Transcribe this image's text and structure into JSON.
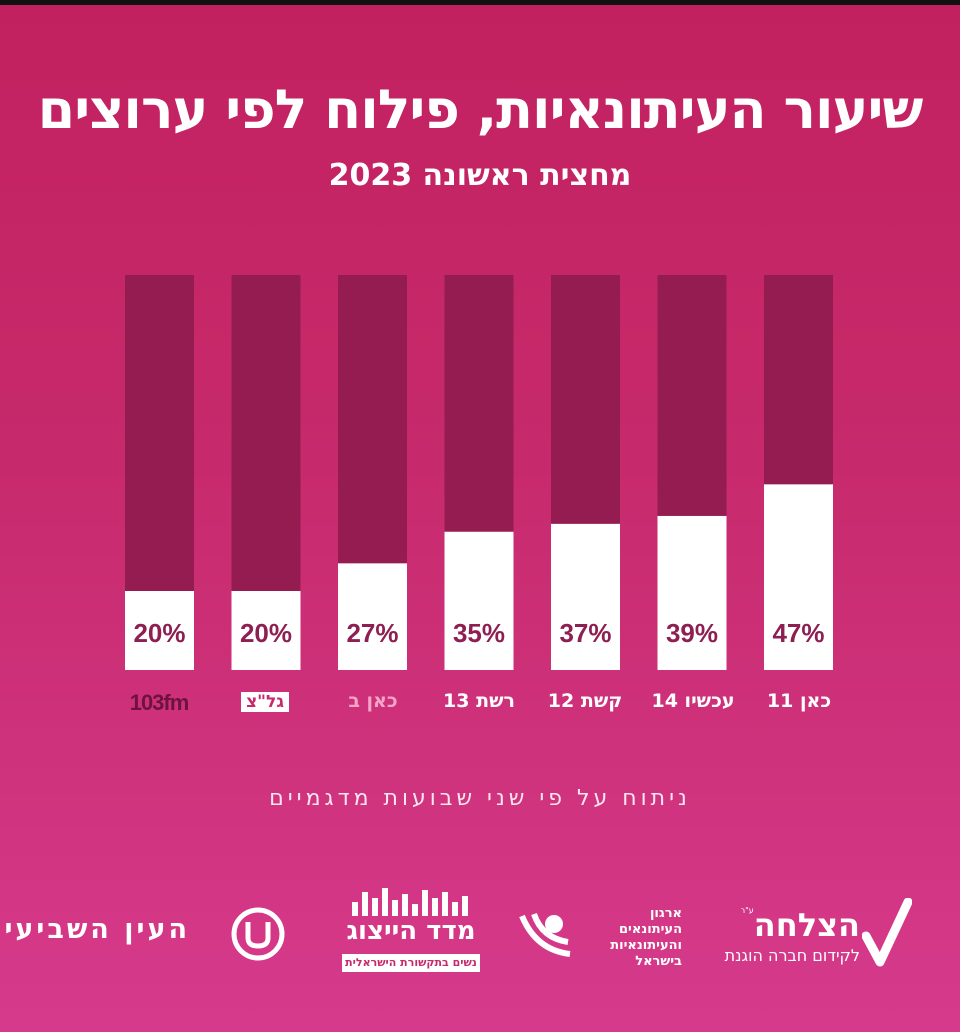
{
  "title": "שיעור העיתונאיות, פילוח לפי ערוצים",
  "subtitle": "מחצית ראשונה 2023",
  "note": "ניתוח על פי שני שבועות מדגמיים",
  "colors": {
    "bar_bg": "#951c51",
    "bar_fill": "#ffffff",
    "label": "#8e1f52",
    "background": "#c72a6c"
  },
  "chart_data": {
    "type": "bar",
    "stacked_to_100": true,
    "categories": [
      "103fm",
      "גל\"צ",
      "כאן ב",
      "רשת 13",
      "קשת 12",
      "עכשיו 14",
      "כאן 11"
    ],
    "values": [
      20,
      20,
      27,
      35,
      37,
      39,
      47
    ],
    "value_labels": [
      "20%",
      "20%",
      "27%",
      "35%",
      "37%",
      "39%",
      "47%"
    ],
    "ylim": [
      0,
      100
    ],
    "grid": false
  },
  "logos": {
    "hazlacha_name": "הצלחה",
    "hazlacha_mark": "ע\"ר",
    "hazlacha_sub": "לקידום חברה הוגנת",
    "union_line1": "ארגון",
    "union_line2": "העיתונאים",
    "union_line3": "והעיתונאיות",
    "union_line4": "בישראל",
    "madad_name": "מדד הייצוג",
    "madad_sub": "נשים בתקשורת הישראלית",
    "ayin_name": "העין השביעית"
  }
}
